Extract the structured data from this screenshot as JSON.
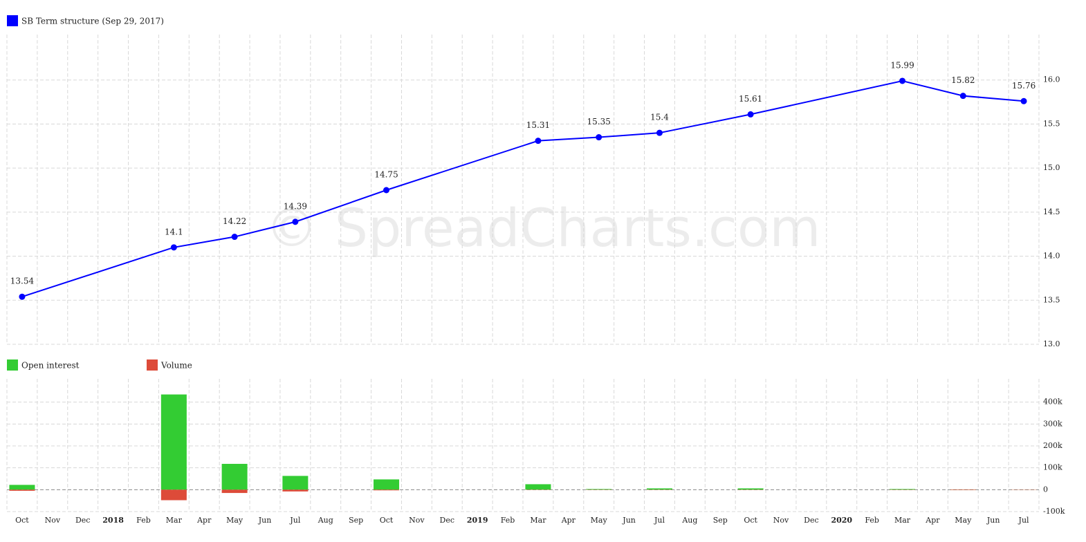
{
  "watermark": "© SpreadCharts.com",
  "chart_data": [
    {
      "type": "line",
      "series": [
        {
          "name": "SB Term structure (Sep 29, 2017)",
          "color": "#0000ff",
          "values": [
            13.54,
            null,
            null,
            null,
            null,
            14.1,
            null,
            14.22,
            null,
            14.39,
            null,
            null,
            14.75,
            null,
            null,
            null,
            null,
            15.31,
            null,
            15.35,
            null,
            15.4,
            null,
            null,
            15.61,
            null,
            null,
            null,
            null,
            15.99,
            null,
            15.82,
            null,
            15.76
          ]
        }
      ],
      "connect_nulls": true,
      "data_labels": true,
      "ylim": [
        13,
        16.5
      ],
      "yticks": [
        {
          "value": 13,
          "label": "13.0"
        },
        13.5,
        {
          "value": 14,
          "label": "14.0"
        },
        14.5,
        {
          "value": 15,
          "label": "15.0"
        },
        15.5,
        {
          "value": 16,
          "label": "16.0"
        }
      ],
      "grid": true
    },
    {
      "type": "bar",
      "categories": [
        "Oct",
        "Nov",
        "Dec",
        "2018",
        "Feb",
        "Mar",
        "Apr",
        "May",
        "Jun",
        "Jul",
        "Aug",
        "Sep",
        "Oct",
        "Nov",
        "Dec",
        "2019",
        "Feb",
        "Mar",
        "Apr",
        "May",
        "Jun",
        "Jul",
        "Aug",
        "Sep",
        "Oct",
        "Nov",
        "Dec",
        "2020",
        "Feb",
        "Mar",
        "Apr",
        "May",
        "Jun",
        "Jul"
      ],
      "series": [
        {
          "name": "Open interest",
          "color": "#33cc33",
          "values": [
            22000,
            null,
            null,
            null,
            null,
            435000,
            null,
            118000,
            null,
            63000,
            null,
            null,
            47000,
            null,
            null,
            null,
            null,
            25000,
            null,
            3000,
            null,
            6000,
            null,
            null,
            6000,
            null,
            null,
            null,
            null,
            3000,
            null,
            500,
            null,
            300
          ]
        },
        {
          "name": "Volume",
          "color": "#dd4b39",
          "values": [
            -5000,
            null,
            null,
            null,
            null,
            -48000,
            null,
            -15000,
            null,
            -8000,
            null,
            null,
            -3000,
            null,
            null,
            null,
            null,
            -1000,
            null,
            -1000,
            null,
            -1000,
            null,
            null,
            -1000,
            null,
            null,
            null,
            null,
            -1000,
            null,
            -2000,
            null,
            -1000
          ]
        }
      ],
      "ylim": [
        -100000,
        500000
      ],
      "yticks": [
        {
          "value": -100000,
          "label": "-100k"
        },
        0,
        {
          "value": 100000,
          "label": "100k"
        },
        {
          "value": 200000,
          "label": "200k"
        },
        {
          "value": 300000,
          "label": "300k"
        },
        {
          "value": 400000,
          "label": "400k"
        }
      ],
      "grid": true
    }
  ]
}
